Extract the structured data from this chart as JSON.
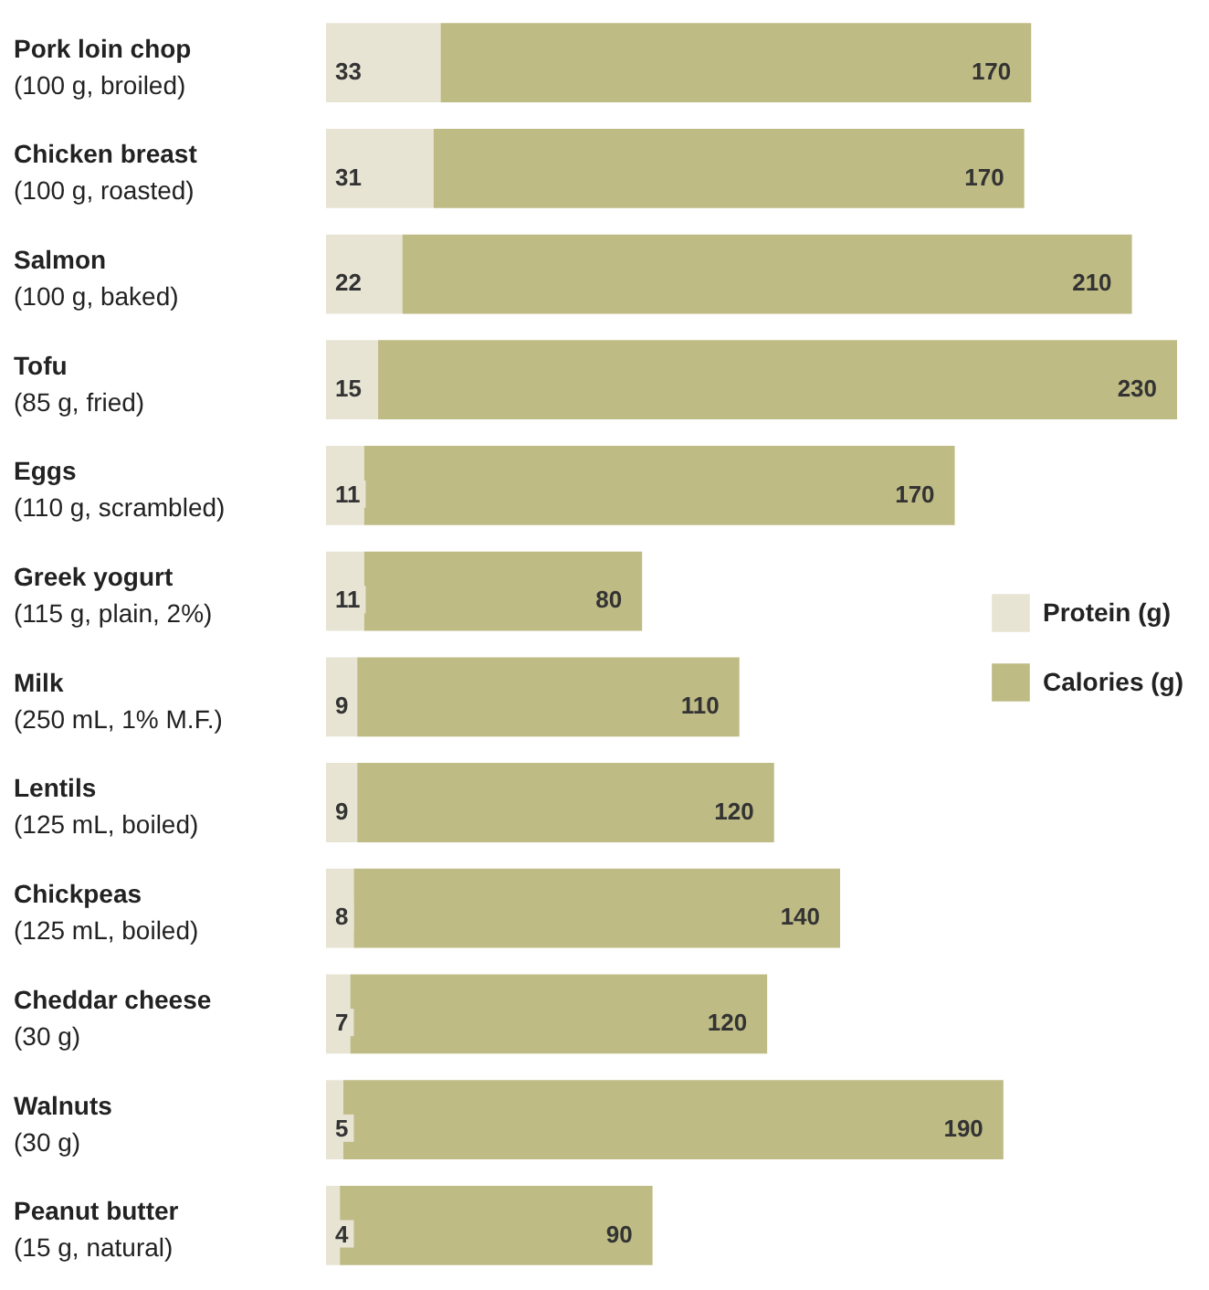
{
  "chart_data": {
    "type": "bar",
    "orientation": "horizontal",
    "stacked": true,
    "data_labels": true,
    "legend": "right",
    "grid": false,
    "categories": [
      "Pork loin chop\n(100 g, broiled)",
      "Chicken breast\n(100 g, roasted)",
      "Salmon\n(100 g, baked)",
      "Tofu\n(85 g, fried)",
      "Eggs\n(110 g, scrambled)",
      "Greek yogurt\n(115 g, plain, 2%)",
      "Milk\n(250 mL, 1% M.F.)",
      "Lentils\n(125 mL, boiled)",
      "Chickpeas\n(125 mL, boiled)",
      "Cheddar cheese\n(30 g)",
      "Walnuts\n(30 g)",
      "Peanut butter\n(15 g, natural)"
    ],
    "series": [
      {
        "name": "Protein (g)",
        "color": "#e8e4d4",
        "values": [
          33,
          31,
          22,
          15,
          11,
          11,
          9,
          9,
          8,
          7,
          5,
          4
        ]
      },
      {
        "name": "Calories (g)",
        "color": "#bfbb85",
        "values": [
          170,
          170,
          210,
          230,
          170,
          80,
          110,
          120,
          140,
          120,
          190,
          90
        ]
      }
    ]
  }
}
